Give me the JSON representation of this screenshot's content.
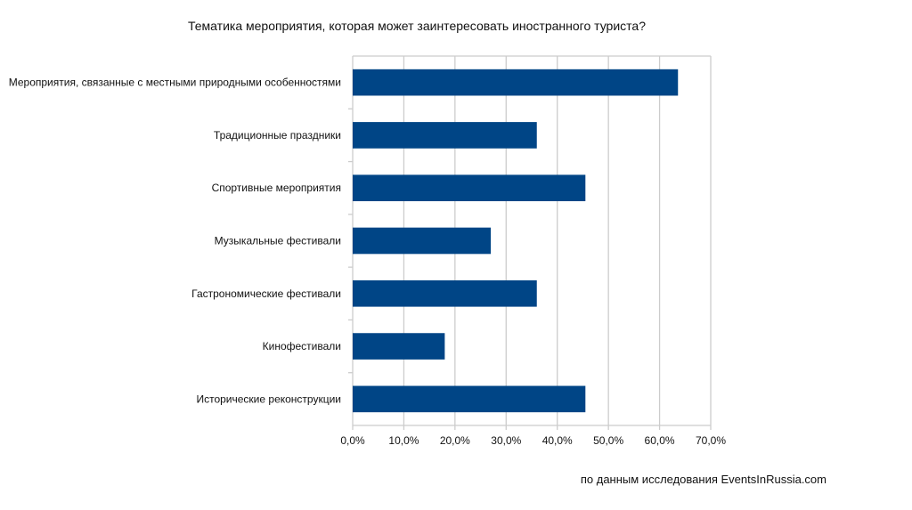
{
  "chart_data": {
    "type": "bar",
    "orientation": "horizontal",
    "title": "Тематика мероприятия, которая может заинтересовать иностранного туриста?",
    "categories": [
      "Мероприятия, связанные с местными природными особенностями",
      "Традиционные праздники",
      "Спортивные мероприятия",
      "Музыкальные фестивали",
      "Гастрономические фестивали",
      "Кинофестивали",
      "Исторические реконструкции"
    ],
    "values": [
      63.6,
      36.0,
      45.5,
      27.0,
      36.0,
      18.0,
      45.5
    ],
    "xlim": [
      0,
      70
    ],
    "xticks": [
      "0,0%",
      "10,0%",
      "20,0%",
      "30,0%",
      "40,0%",
      "50,0%",
      "60,0%",
      "70,0%"
    ],
    "xlabel": "",
    "ylabel": "",
    "grid": true,
    "bar_color": "#004586",
    "grid_color": "#cccccc",
    "annotation": "по данным исследования EventsInRussia.com"
  }
}
